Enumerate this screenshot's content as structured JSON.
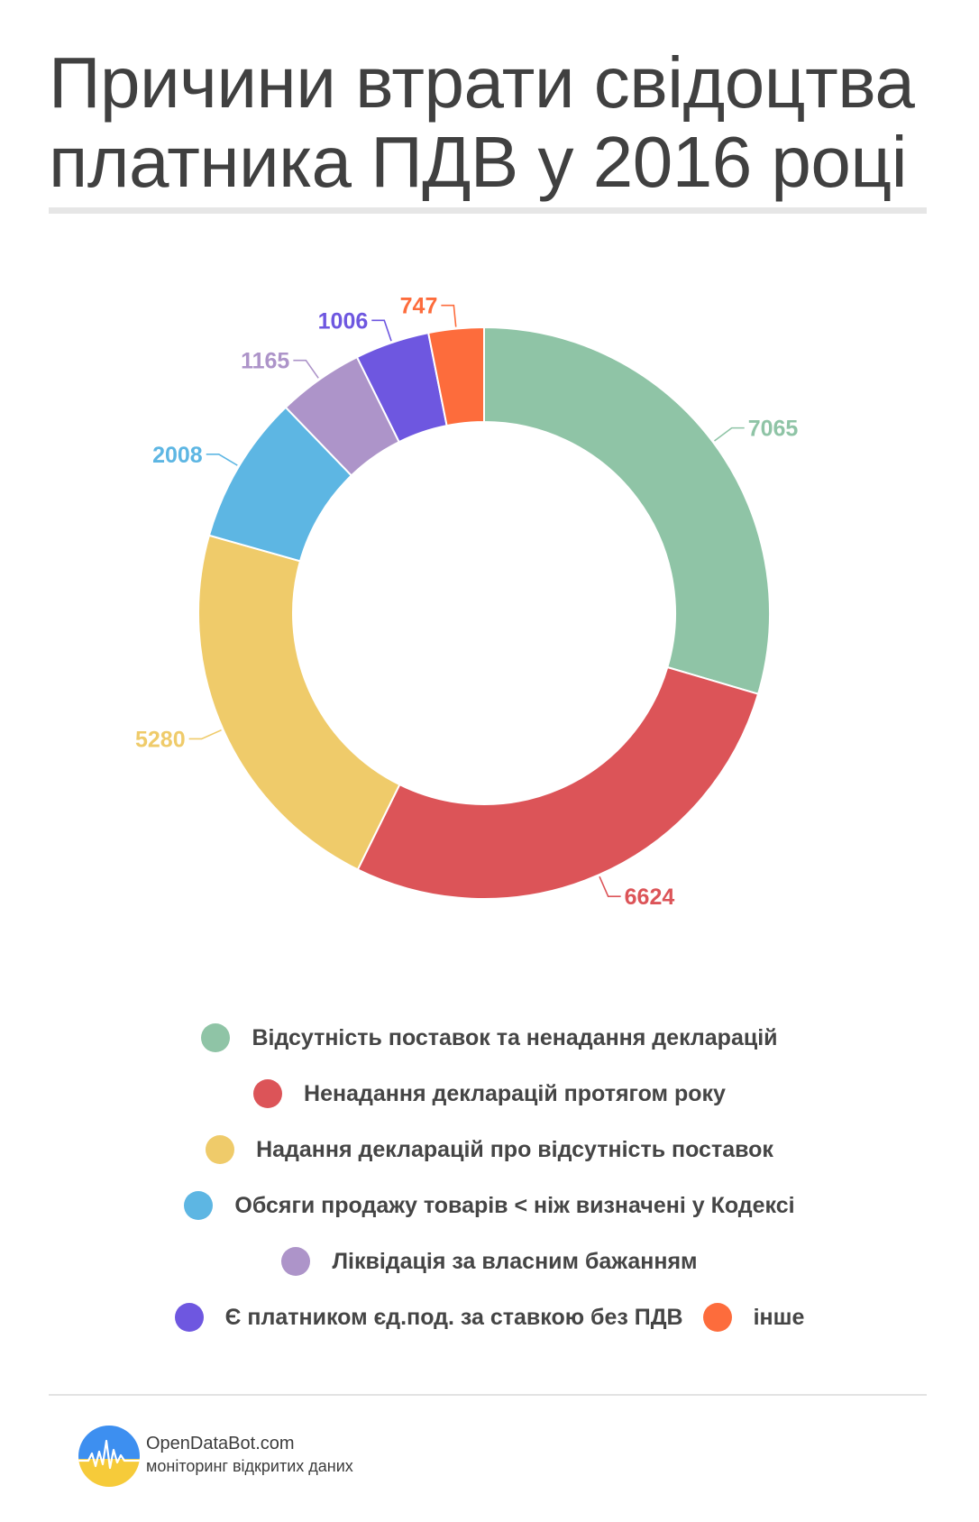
{
  "title_line1": "Причини втрати свідоцтва",
  "title_line2": "платника ПДВ у 2016 році",
  "chart_data": {
    "type": "pie",
    "title": "Причини втрати свідоцтва платника ПДВ у 2016 році",
    "categories": [
      "Відсутність поставок та ненадання декларацій",
      "Ненадання декларацій протягом року",
      "Надання декларацій про відсутність поставок",
      "Обсяги продажу товарів < ніж визначені у Кодексі",
      "Ліквідація за власним бажанням",
      "Є платником єд.под. за ставкою без ПДВ",
      "інше"
    ],
    "values": [
      7065,
      6624,
      5280,
      2008,
      1165,
      1006,
      747
    ],
    "value_labels": [
      "7065",
      "6624",
      "5280",
      "2008",
      "1165",
      "1006",
      "747"
    ],
    "colors": [
      "#8fc4a6",
      "#dc5458",
      "#efcb6a",
      "#5db6e3",
      "#ad94c9",
      "#6e57e0",
      "#fd6c3c"
    ],
    "style": "donut",
    "legend": "bottom"
  },
  "legend_rows": [
    [
      0
    ],
    [
      1
    ],
    [
      2
    ],
    [
      3
    ],
    [
      4
    ],
    [
      5,
      6
    ]
  ],
  "footer": {
    "brand": "OpenDataBot.com",
    "tagline": "моніторинг відкритих даних",
    "logo_colors": {
      "sky": "#3d8ff0",
      "ground": "#f6cb3a",
      "line": "#ffffff"
    }
  }
}
